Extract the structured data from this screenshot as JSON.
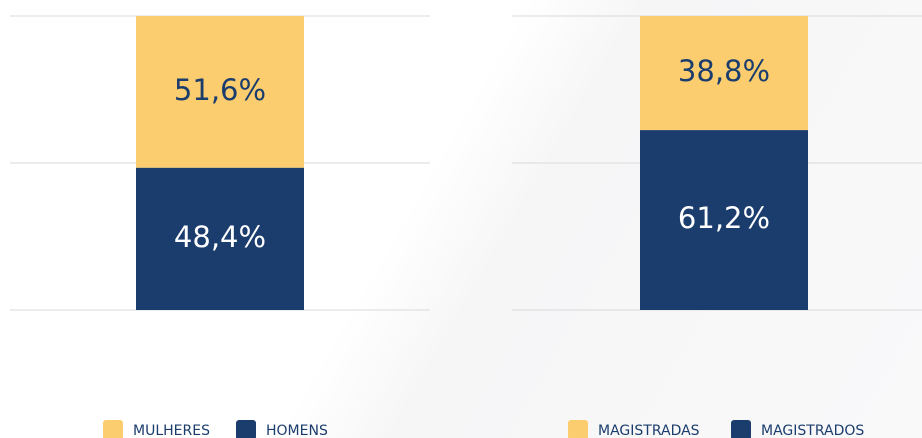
{
  "chart_data": [
    {
      "type": "stacked_bar",
      "categories": [
        null
      ],
      "ylim": [
        0,
        100
      ],
      "yticks": [
        0,
        50,
        100
      ],
      "grid": true,
      "legend": "bottom",
      "series": [
        {
          "name": "MULHERES",
          "color": "#fccd6e",
          "values": [
            51.6
          ],
          "value_labels": [
            "51,6%"
          ]
        },
        {
          "name": "HOMENS",
          "color": "#1b3d6d",
          "values": [
            48.4
          ],
          "value_labels": [
            "48,4%"
          ]
        }
      ]
    },
    {
      "type": "stacked_bar",
      "categories": [
        null
      ],
      "ylim": [
        0,
        100
      ],
      "yticks": [
        0,
        50,
        100
      ],
      "grid": true,
      "legend": "bottom",
      "series": [
        {
          "name": "MAGISTRADAS",
          "color": "#fccd6e",
          "values": [
            38.8
          ],
          "value_labels": [
            "38,8%"
          ]
        },
        {
          "name": "MAGISTRADOS",
          "color": "#1b3d6d",
          "values": [
            61.2
          ],
          "value_labels": [
            "61,2%"
          ]
        }
      ]
    }
  ]
}
